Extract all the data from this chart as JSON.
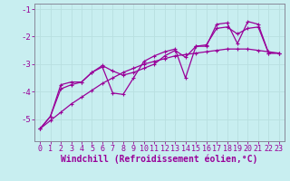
{
  "xlabel": "Windchill (Refroidissement éolien,°C)",
  "background_color": "#c8eef0",
  "line_color": "#990099",
  "grid_color": "#b8dfe0",
  "axis_color": "#888899",
  "x_data": [
    0,
    1,
    2,
    3,
    4,
    5,
    6,
    7,
    8,
    9,
    10,
    11,
    12,
    13,
    14,
    15,
    16,
    17,
    18,
    19,
    20,
    21,
    22,
    23
  ],
  "y_line1": [
    -5.35,
    -4.9,
    -3.9,
    -3.75,
    -3.65,
    -3.3,
    -3.1,
    -4.05,
    -4.1,
    -3.5,
    -2.9,
    -2.7,
    -2.55,
    -2.45,
    -3.5,
    -2.35,
    -2.35,
    -1.55,
    -1.5,
    -2.25,
    -1.45,
    -1.55,
    -2.6,
    -2.6
  ],
  "y_line2": [
    -5.35,
    -4.9,
    -3.75,
    -3.65,
    -3.65,
    -3.3,
    -3.05,
    -3.25,
    -3.4,
    -3.3,
    -3.15,
    -3.0,
    -2.7,
    -2.5,
    -2.75,
    -2.35,
    -2.3,
    -1.7,
    -1.65,
    -1.9,
    -1.7,
    -1.65,
    -2.6,
    -2.6
  ],
  "y_linear": [
    -5.35,
    -5.05,
    -4.75,
    -4.45,
    -4.2,
    -3.95,
    -3.7,
    -3.5,
    -3.3,
    -3.15,
    -3.0,
    -2.9,
    -2.8,
    -2.7,
    -2.65,
    -2.6,
    -2.55,
    -2.5,
    -2.45,
    -2.45,
    -2.45,
    -2.5,
    -2.55,
    -2.6
  ],
  "ylim": [
    -5.8,
    -0.8
  ],
  "xlim": [
    -0.5,
    23.5
  ],
  "yticks": [
    -5,
    -4,
    -3,
    -2,
    -1
  ],
  "xticks": [
    0,
    1,
    2,
    3,
    4,
    5,
    6,
    7,
    8,
    9,
    10,
    11,
    12,
    13,
    14,
    15,
    16,
    17,
    18,
    19,
    20,
    21,
    22,
    23
  ],
  "xlabel_fontsize": 7,
  "tick_fontsize": 6.0,
  "line_width": 0.9,
  "marker_size": 2.5
}
